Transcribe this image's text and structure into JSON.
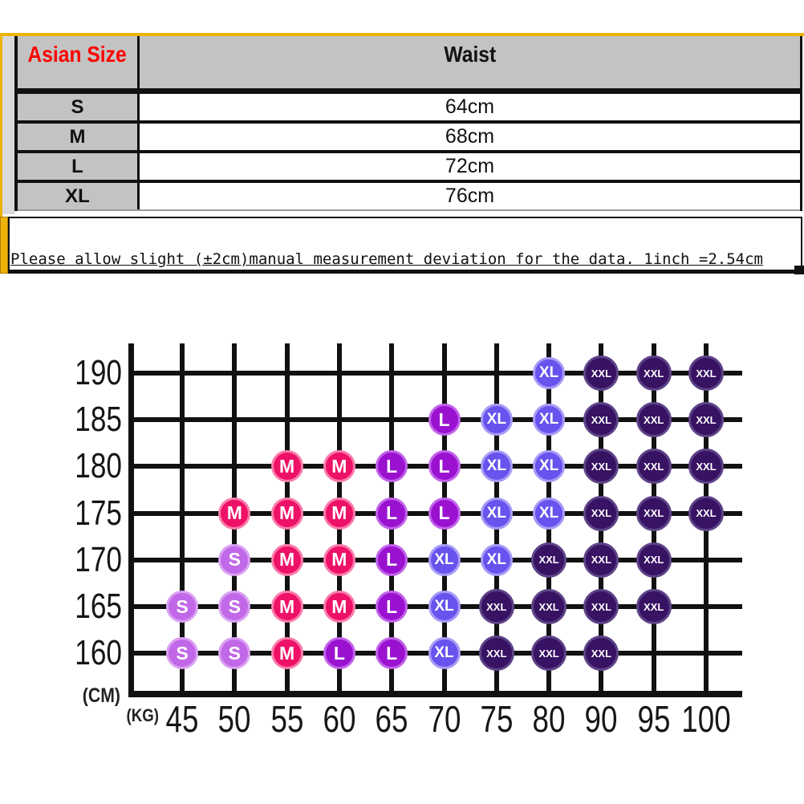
{
  "table": {
    "header": {
      "size": "Asian Size",
      "waist": "Waist"
    },
    "rows": [
      {
        "size": "S",
        "waist": "64cm"
      },
      {
        "size": "M",
        "waist": "68cm"
      },
      {
        "size": "L",
        "waist": "72cm"
      },
      {
        "size": "XL",
        "waist": "76cm"
      }
    ]
  },
  "note": {
    "text": "Please allow slight (±2cm)manual measurement deviation for the data. 1inch =2.54cm"
  },
  "chart_data": {
    "type": "scatter",
    "x_unit_label": "(KG)",
    "y_unit_label": "(CM)",
    "x_ticks": [
      "45",
      "50",
      "55",
      "60",
      "65",
      "70",
      "75",
      "80",
      "90",
      "95",
      "100"
    ],
    "y_ticks": [
      "190",
      "185",
      "180",
      "175",
      "170",
      "165",
      "160"
    ],
    "grid": true,
    "legend": "none",
    "points_matrix": [
      [
        "",
        "",
        "",
        "",
        "",
        "",
        "",
        "XL",
        "XXL",
        "XXL",
        "XXL"
      ],
      [
        "",
        "",
        "",
        "",
        "",
        "L",
        "XL",
        "XL",
        "XXL",
        "XXL",
        "XXL"
      ],
      [
        "",
        "",
        "M",
        "M",
        "L",
        "L",
        "XL",
        "XL",
        "XXL",
        "XXL",
        "XXL"
      ],
      [
        "",
        "M",
        "M",
        "M",
        "L",
        "L",
        "XL",
        "XL",
        "XXL",
        "XXL",
        "XXL"
      ],
      [
        "",
        "S",
        "M",
        "M",
        "L",
        "XL",
        "XL",
        "XXL",
        "XXL",
        "XXL",
        ""
      ],
      [
        "S",
        "S",
        "M",
        "M",
        "L",
        "XL",
        "XXL",
        "XXL",
        "XXL",
        "XXL",
        ""
      ],
      [
        "S",
        "S",
        "M",
        "L",
        "L",
        "XL",
        "XXL",
        "XXL",
        "XXL",
        "",
        ""
      ]
    ],
    "size_colors": {
      "S": {
        "fill": "#c168e8",
        "rim": "#daa1f2"
      },
      "M": {
        "fill": "#ee1168",
        "rim": "#f97cab"
      },
      "L": {
        "fill": "#9a12d0",
        "rim": "#c263ea"
      },
      "XL": {
        "fill": "#6853ee",
        "rim": "#a79bf6"
      },
      "XXL": {
        "fill": "#381263",
        "rim": "#5d4387"
      }
    }
  },
  "colors": {
    "accent_yellow": "#eeb306",
    "table_header_bg": "#c3c3c3",
    "header_text_red": "#ff0000",
    "grid_black": "#111111"
  }
}
